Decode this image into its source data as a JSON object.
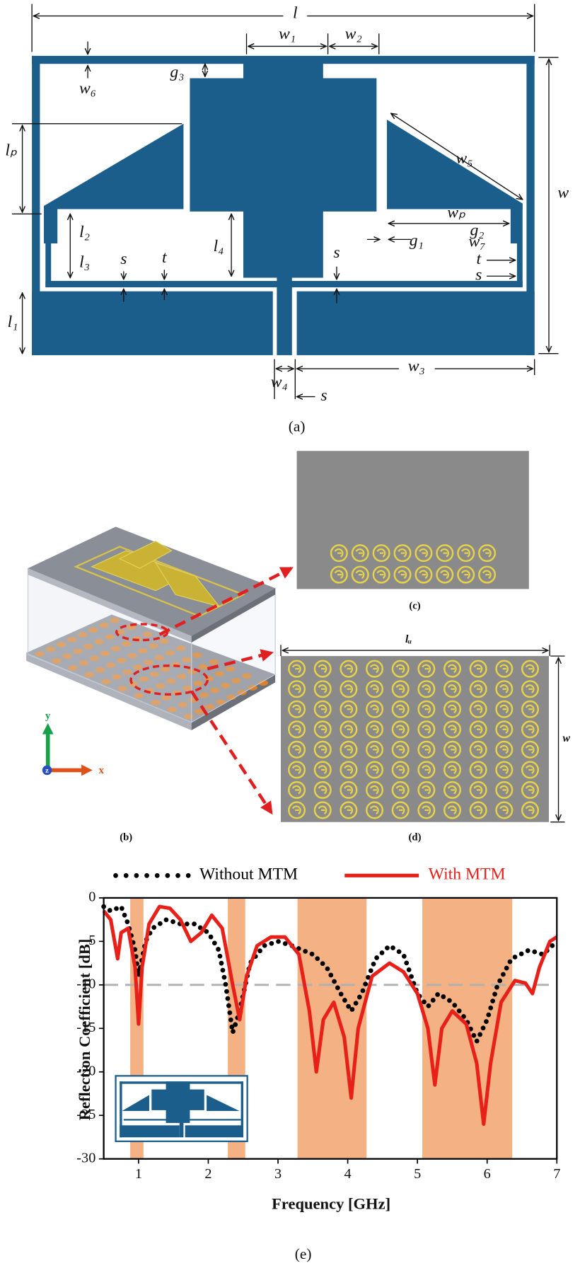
{
  "panel_a": {
    "caption": "(a)",
    "labels": [
      "l",
      "w₁",
      "w₂",
      "g₃",
      "w₆",
      "lₚ",
      "w₅",
      "w",
      "l₂",
      "l₃",
      "s",
      "t",
      "l₄",
      "s",
      "wₚ",
      "g₂",
      "g₁",
      "w₇",
      "t",
      "s",
      "l₁",
      "w₄",
      "s",
      "w₃"
    ]
  },
  "panel_b": {
    "caption": "(b)",
    "axes": [
      "y",
      "x",
      "z"
    ]
  },
  "panel_c": {
    "caption": "(c)"
  },
  "panel_d": {
    "caption": "(d)",
    "labels": [
      "lᵤ",
      "w"
    ]
  },
  "panel_e": {
    "caption": "(e)"
  },
  "chart_data": {
    "type": "line",
    "x_label": "Frequency [GHz]",
    "y_label": "Reflection Coefficient [dB]",
    "xlim": [
      0.5,
      7
    ],
    "ylim": [
      -30,
      0
    ],
    "xticks": [
      1,
      2,
      3,
      4,
      5,
      6,
      7
    ],
    "yticks": [
      0,
      -5,
      -10,
      -15,
      -20,
      -25,
      -30
    ],
    "grid": false,
    "legend": "top",
    "threshold": -10,
    "threshold_color": "#b0b0b0",
    "bands": [
      [
        0.88,
        1.07
      ],
      [
        2.28,
        2.53
      ],
      [
        3.28,
        4.27
      ],
      [
        5.07,
        6.36
      ]
    ],
    "band_color": "#f4b183",
    "series": [
      {
        "name": "Without MTM",
        "color": "#000000",
        "style": "dotted",
        "x": [
          0.5,
          0.6,
          0.75,
          0.85,
          0.95,
          1.0,
          1.1,
          1.2,
          1.4,
          1.6,
          1.8,
          2.0,
          2.15,
          2.25,
          2.35,
          2.45,
          2.6,
          2.8,
          3.0,
          3.2,
          3.5,
          3.7,
          3.9,
          4.05,
          4.2,
          4.4,
          4.6,
          4.8,
          5.0,
          5.15,
          5.3,
          5.5,
          5.7,
          5.85,
          6.0,
          6.15,
          6.35,
          6.6,
          6.8,
          7.0
        ],
        "values": [
          -1,
          -1.5,
          -1,
          -3,
          -6,
          -9,
          -5,
          -3.5,
          -2.5,
          -3,
          -3,
          -4,
          -6,
          -10,
          -15.5,
          -13,
          -7.5,
          -5.5,
          -5,
          -5.5,
          -6.5,
          -8,
          -11,
          -13,
          -11,
          -7,
          -5.5,
          -6.5,
          -11,
          -12.5,
          -11,
          -12,
          -14,
          -16.5,
          -14,
          -10,
          -7,
          -6,
          -6.5,
          -5
        ]
      },
      {
        "name": "With MTM",
        "color": "#e8201a",
        "style": "solid",
        "x": [
          0.5,
          0.6,
          0.7,
          0.75,
          0.85,
          0.95,
          1.0,
          1.05,
          1.15,
          1.3,
          1.45,
          1.6,
          1.75,
          1.9,
          2.05,
          2.2,
          2.35,
          2.45,
          2.55,
          2.7,
          2.9,
          3.1,
          3.3,
          3.45,
          3.55,
          3.65,
          3.8,
          3.95,
          4.05,
          4.15,
          4.35,
          4.6,
          4.8,
          5.0,
          5.15,
          5.25,
          5.35,
          5.5,
          5.7,
          5.85,
          5.95,
          6.05,
          6.2,
          6.4,
          6.55,
          6.65,
          6.75,
          6.9,
          7.0
        ],
        "values": [
          -1.5,
          -2.5,
          -7,
          -4,
          -3.5,
          -8,
          -14.5,
          -8,
          -3,
          -1,
          -1.2,
          -2.5,
          -5,
          -4,
          -2,
          -3.5,
          -10,
          -14,
          -9,
          -5.5,
          -4.5,
          -4.5,
          -6.5,
          -13,
          -20,
          -14,
          -12,
          -16,
          -23,
          -15,
          -9,
          -7.5,
          -8.5,
          -11,
          -15,
          -21.5,
          -15,
          -13,
          -14.5,
          -19,
          -26,
          -19,
          -12,
          -9.5,
          -9.8,
          -11,
          -8,
          -5,
          -4.5
        ]
      }
    ]
  }
}
